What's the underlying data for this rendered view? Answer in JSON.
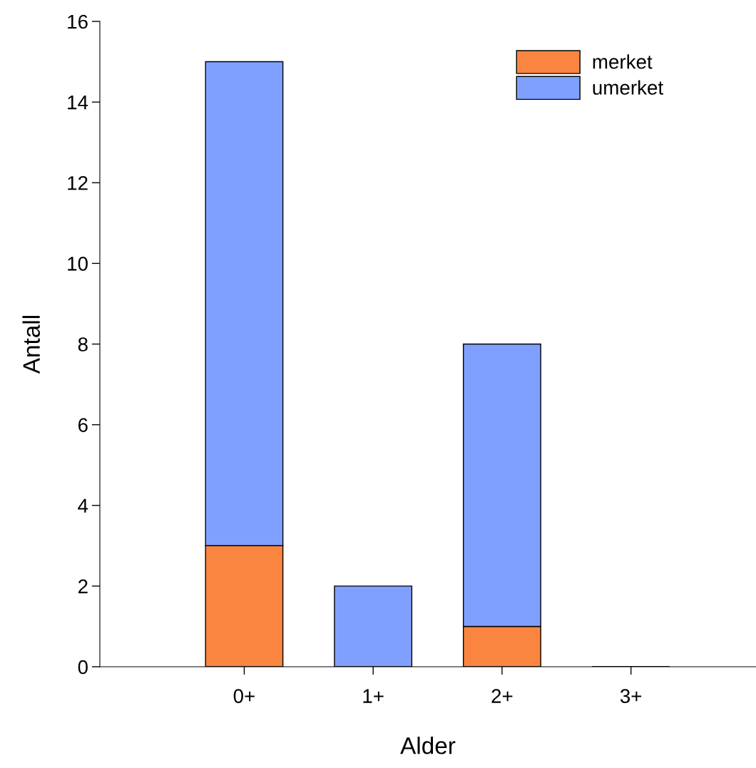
{
  "chart_data": {
    "type": "bar",
    "stacked": true,
    "xlabel": "Alder",
    "ylabel": "Antall",
    "categories": [
      "0+",
      "1+",
      "2+",
      "3+"
    ],
    "series": [
      {
        "name": "merket",
        "color": "#f98541",
        "values": [
          3,
          0,
          1,
          0
        ]
      },
      {
        "name": "umerket",
        "color": "#80a0ff",
        "values": [
          12,
          2,
          7,
          0
        ]
      }
    ],
    "ylim": [
      0,
      16
    ],
    "yticks": [
      0,
      2,
      4,
      6,
      8,
      10,
      12,
      14,
      16
    ],
    "grid": false,
    "legend": "top right"
  }
}
